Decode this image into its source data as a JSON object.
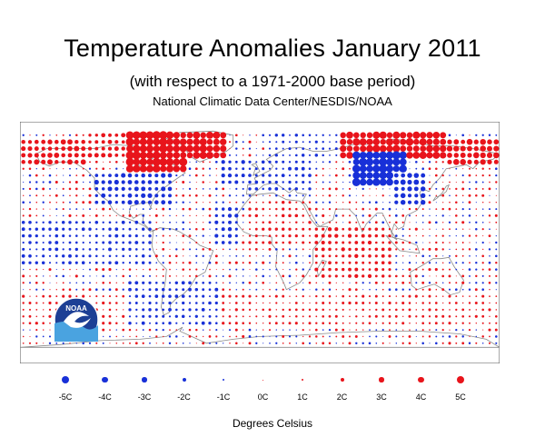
{
  "header": {
    "title": "Temperature Anomalies January 2011",
    "subtitle": "(with respect to a 1971-2000 base period)",
    "source": "National Climatic Data Center/NESDIS/NOAA"
  },
  "logo": {
    "text": "NOAA"
  },
  "colors": {
    "warm": "#e8141b",
    "cold": "#1830d8",
    "land_outline": "#8a8a8a",
    "frame": "#555555"
  },
  "legend": {
    "title": "Degrees Celsius",
    "items": [
      {
        "label": "-5C",
        "value": -5
      },
      {
        "label": "-4C",
        "value": -4
      },
      {
        "label": "-3C",
        "value": -3
      },
      {
        "label": "-2C",
        "value": -2
      },
      {
        "label": "-1C",
        "value": -1
      },
      {
        "label": "0C",
        "value": 0
      },
      {
        "label": "1C",
        "value": 1
      },
      {
        "label": "2C",
        "value": 2
      },
      {
        "label": "3C",
        "value": 3
      },
      {
        "label": "4C",
        "value": 4
      },
      {
        "label": "5C",
        "value": 5
      }
    ]
  },
  "map_data": {
    "projection": "equirectangular",
    "lon_range": [
      -180,
      180
    ],
    "lat_range": [
      -90,
      90
    ],
    "grid_step_deg": 5,
    "anomaly_patches": [
      {
        "lon": [
          -180,
          -130
        ],
        "lat": [
          60,
          75
        ],
        "anomaly": 2.5
      },
      {
        "lon": [
          -130,
          -100
        ],
        "lat": [
          62,
          80
        ],
        "anomaly": 2
      },
      {
        "lon": [
          -100,
          -55
        ],
        "lat": [
          55,
          80
        ],
        "anomaly": 4.5
      },
      {
        "lon": [
          -60,
          -25
        ],
        "lat": [
          65,
          82
        ],
        "anomaly": 4
      },
      {
        "lon": [
          -125,
          -65
        ],
        "lat": [
          30,
          50
        ],
        "anomaly": -2
      },
      {
        "lon": [
          -30,
          0
        ],
        "lat": [
          45,
          62
        ],
        "anomaly": -1.5
      },
      {
        "lon": [
          -10,
          40
        ],
        "lat": [
          40,
          60
        ],
        "anomaly": -1.2
      },
      {
        "lon": [
          5,
          60
        ],
        "lat": [
          62,
          80
        ],
        "anomaly": -1
      },
      {
        "lon": [
          60,
          140
        ],
        "lat": [
          65,
          80
        ],
        "anomaly": 4
      },
      {
        "lon": [
          140,
          180
        ],
        "lat": [
          60,
          75
        ],
        "anomaly": 3
      },
      {
        "lon": [
          70,
          110
        ],
        "lat": [
          45,
          65
        ],
        "anomaly": -4.5
      },
      {
        "lon": [
          100,
          125
        ],
        "lat": [
          30,
          50
        ],
        "anomaly": -2.5
      },
      {
        "lon": [
          -35,
          -15
        ],
        "lat": [
          0,
          25
        ],
        "anomaly": -1.5
      },
      {
        "lon": [
          -180,
          -80
        ],
        "lat": [
          -15,
          15
        ],
        "anomaly": -1.2
      },
      {
        "lon": [
          40,
          100
        ],
        "lat": [
          -25,
          10
        ],
        "anomaly": 1.5
      },
      {
        "lon": [
          -10,
          40
        ],
        "lat": [
          0,
          30
        ],
        "anomaly": 1
      },
      {
        "lon": [
          -180,
          180
        ],
        "lat": [
          -60,
          -40
        ],
        "anomaly": 0.8
      },
      {
        "lon": [
          -100,
          -30
        ],
        "lat": [
          -60,
          -30
        ],
        "anomaly": -1.2
      }
    ]
  }
}
